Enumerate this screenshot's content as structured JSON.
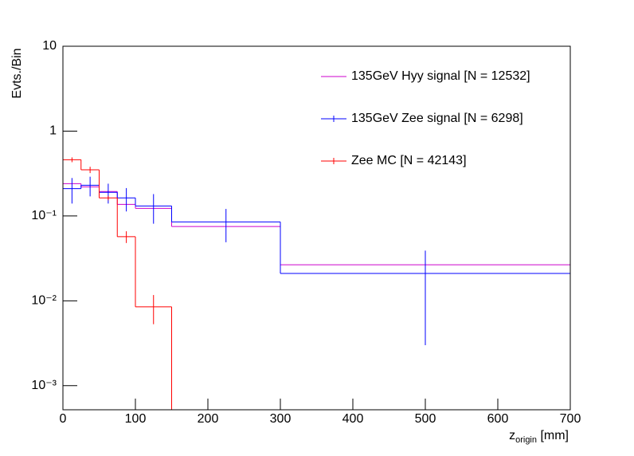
{
  "chart_data": {
    "type": "histogram",
    "ylabel": "Evts./Bin",
    "xlabel": {
      "text": "z",
      "sub": "origin",
      "suffix": "[mm]"
    },
    "bins": [
      0,
      25,
      50,
      75,
      100,
      150,
      300,
      700
    ],
    "series": [
      {
        "name": "135GeV Hyy signal [N = 12532]",
        "color": "#cc00cc",
        "values": [
          0.24,
          0.22,
          0.194,
          0.137,
          0.123,
          0.075,
          0.0266
        ]
      },
      {
        "name": "135GeV Zee signal [N = 6298]",
        "color": "#0000ff",
        "values": [
          0.21,
          0.23,
          0.19,
          0.163,
          0.131,
          0.085,
          0.021
        ],
        "errors": [
          0.07,
          0.06,
          0.05,
          0.05,
          0.05,
          0.036,
          0.018
        ]
      },
      {
        "name": "Zee MC [N = 42143]",
        "color": "#ff0000",
        "values": [
          0.46,
          0.35,
          0.163,
          0.057,
          0.0085,
          0,
          0
        ],
        "errors": [
          0.03,
          0.03,
          0.01,
          0.009,
          0.0032,
          0,
          0
        ]
      }
    ],
    "xlim": [
      0,
      700
    ],
    "xticks": [
      0,
      100,
      200,
      300,
      400,
      500,
      600,
      700
    ],
    "ylim": [
      0.00052,
      10
    ],
    "yticks": [
      {
        "value": 0.001,
        "label": "10⁻³"
      },
      {
        "value": 0.01,
        "label": "10⁻²"
      },
      {
        "value": 0.1,
        "label": "10⁻¹"
      },
      1,
      10
    ],
    "log_y": true,
    "legend": "upper right"
  }
}
